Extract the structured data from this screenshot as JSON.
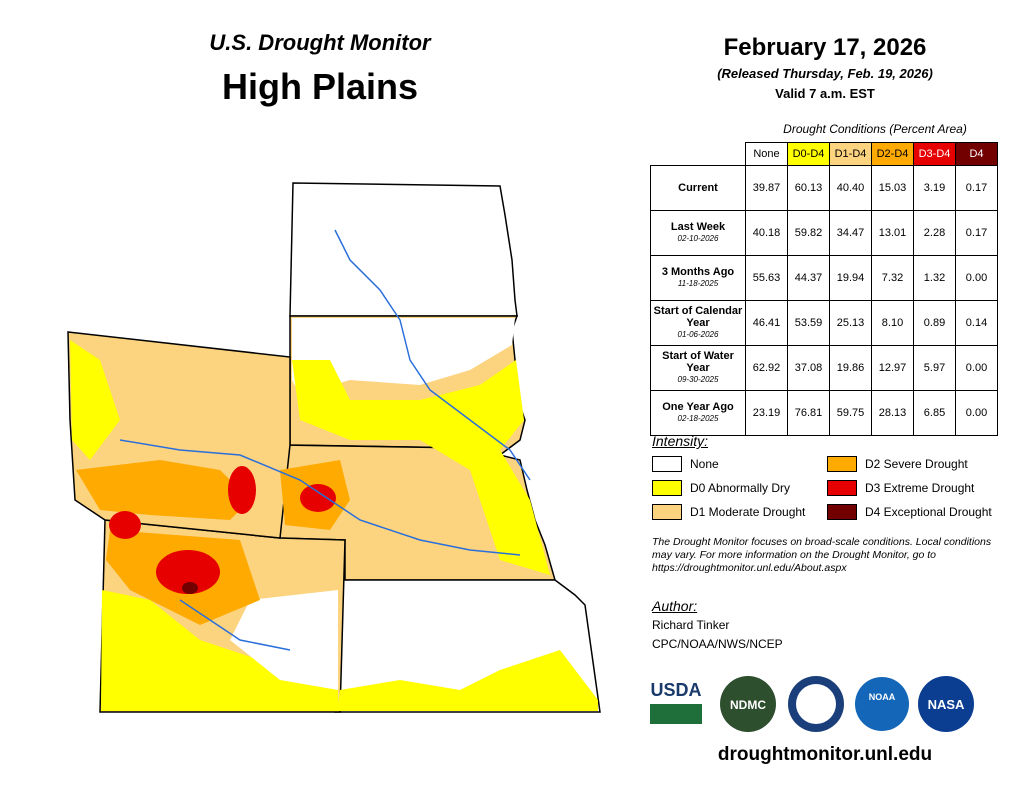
{
  "header": {
    "subtitle": "U.S. Drought Monitor",
    "title": "High Plains",
    "date": "February 17, 2026",
    "released": "(Released Thursday, Feb. 19, 2026)",
    "valid": "Valid 7 a.m. EST"
  },
  "table": {
    "caption": "Drought Conditions (Percent Area)",
    "columns": [
      "None",
      "D0-D4",
      "D1-D4",
      "D2-D4",
      "D3-D4",
      "D4"
    ],
    "rows": [
      {
        "label": "Current",
        "values": [
          "39.87",
          "60.13",
          "40.40",
          "15.03",
          "3.19",
          "0.17"
        ]
      },
      {
        "label": "Last Week",
        "date": "02-10-2026",
        "values": [
          "40.18",
          "59.82",
          "34.47",
          "13.01",
          "2.28",
          "0.17"
        ]
      },
      {
        "label": "3 Months Ago",
        "date": "11-18-2025",
        "values": [
          "55.63",
          "44.37",
          "19.94",
          "7.32",
          "1.32",
          "0.00"
        ]
      },
      {
        "label": "Start of Calendar Year",
        "date": "01-06-2026",
        "values": [
          "46.41",
          "53.59",
          "25.13",
          "8.10",
          "0.89",
          "0.14"
        ]
      },
      {
        "label": "Start of Water Year",
        "date": "09-30-2025",
        "values": [
          "62.92",
          "37.08",
          "19.86",
          "12.97",
          "5.97",
          "0.00"
        ]
      },
      {
        "label": "One Year Ago",
        "date": "02-18-2025",
        "values": [
          "23.19",
          "76.81",
          "59.75",
          "28.13",
          "6.85",
          "0.00"
        ]
      }
    ]
  },
  "legend": {
    "title": "Intensity:",
    "items": [
      "None",
      "D0 Abnormally Dry",
      "D1 Moderate Drought",
      "D2 Severe Drought",
      "D3 Extreme Drought",
      "D4 Exceptional Drought"
    ]
  },
  "note": "The Drought Monitor focuses on broad-scale conditions. Local conditions may vary. For more information on the Drought Monitor, go to https://droughtmonitor.unl.edu/About.aspx",
  "author": {
    "heading": "Author:",
    "name": "Richard Tinker",
    "org": "CPC/NOAA/NWS/NCEP"
  },
  "logos": [
    "USDA",
    "NDMC",
    "NOAA",
    "NASA"
  ],
  "url": "droughtmonitor.unl.edu"
}
